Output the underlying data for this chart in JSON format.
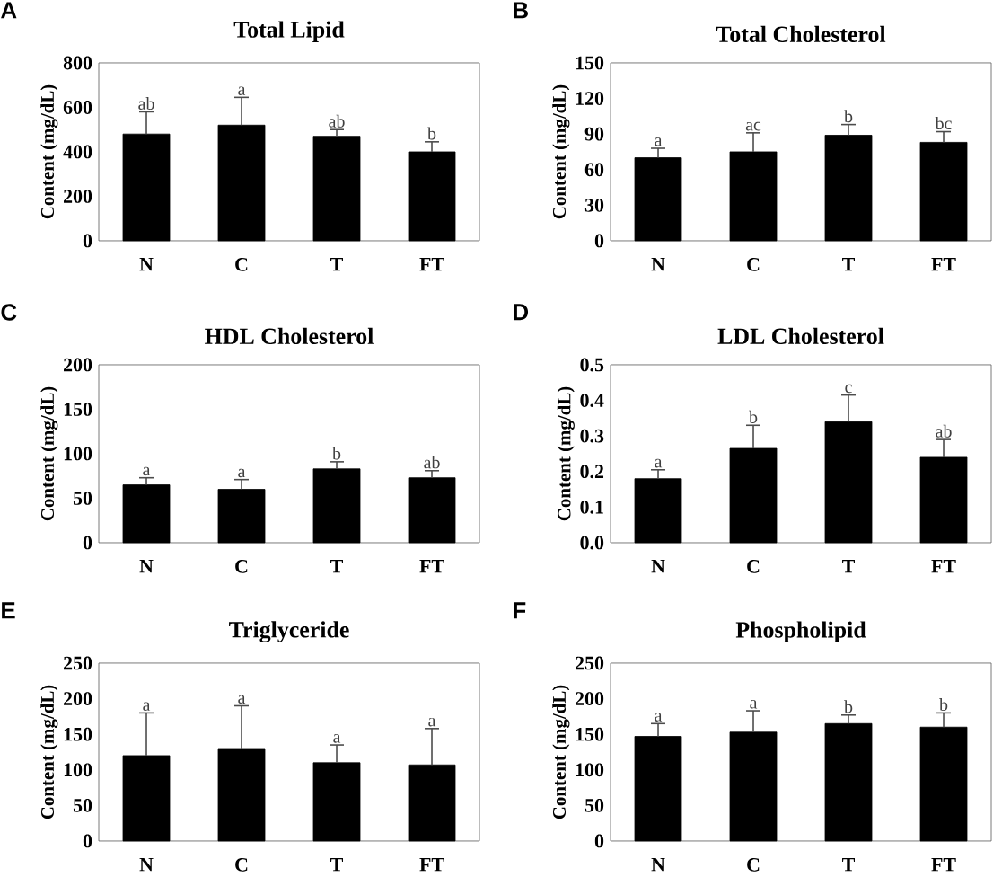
{
  "chart_data": [
    {
      "type": "bar",
      "title": "Total Lipid",
      "ylabel": "Content (mg/dL)",
      "categories": [
        "N",
        "C",
        "T",
        "FT"
      ],
      "values": [
        480,
        520,
        470,
        400
      ],
      "color": "#000000",
      "errors": [
        [
          480,
          580
        ],
        [
          520,
          645
        ],
        [
          470,
          500
        ],
        [
          400,
          445
        ]
      ],
      "ylim": [
        0,
        800
      ],
      "yticks": [
        0,
        200,
        400,
        600,
        800
      ],
      "annotations": [
        "A",
        {
          "text": "ab",
          "x": "N",
          "y": 580
        },
        {
          "text": "a",
          "x": "C",
          "y": 645
        },
        {
          "text": "ab",
          "x": "T",
          "y": 500
        },
        {
          "text": "b",
          "x": "FT",
          "y": 445
        }
      ]
    },
    {
      "type": "bar",
      "title": "Total Cholesterol",
      "ylabel": "Content (mg/dL)",
      "categories": [
        "N",
        "C",
        "T",
        "FT"
      ],
      "values": [
        70,
        75,
        89,
        83
      ],
      "color": "#000000",
      "errors": [
        [
          70,
          78
        ],
        [
          75,
          91
        ],
        [
          89,
          98
        ],
        [
          83,
          92
        ]
      ],
      "ylim": [
        0,
        150
      ],
      "yticks": [
        0,
        30,
        60,
        90,
        120,
        150
      ],
      "annotations": [
        "B",
        {
          "text": "a",
          "x": "N",
          "y": 78
        },
        {
          "text": "ac",
          "x": "C",
          "y": 91
        },
        {
          "text": "b",
          "x": "T",
          "y": 98
        },
        {
          "text": "bc",
          "x": "FT",
          "y": 92
        }
      ]
    },
    {
      "type": "bar",
      "title": "HDL Cholesterol",
      "ylabel": "Content (mg/dL)",
      "categories": [
        "N",
        "C",
        "T",
        "FT"
      ],
      "values": [
        65,
        60,
        83,
        73
      ],
      "color": "#000000",
      "errors": [
        [
          65,
          73
        ],
        [
          60,
          71
        ],
        [
          83,
          91
        ],
        [
          73,
          81
        ]
      ],
      "ylim": [
        0,
        200
      ],
      "yticks": [
        0,
        50,
        100,
        150,
        200
      ],
      "annotations": [
        "C",
        {
          "text": "a",
          "x": "N",
          "y": 73
        },
        {
          "text": "a",
          "x": "C",
          "y": 71
        },
        {
          "text": "b",
          "x": "T",
          "y": 91
        },
        {
          "text": "ab",
          "x": "FT",
          "y": 81
        }
      ]
    },
    {
      "type": "bar",
      "title": "LDL Cholesterol",
      "ylabel": "Content (mg/dL)",
      "categories": [
        "N",
        "C",
        "T",
        "FT"
      ],
      "values": [
        0.18,
        0.265,
        0.34,
        0.24
      ],
      "color": "#000000",
      "errors": [
        [
          0.18,
          0.205
        ],
        [
          0.265,
          0.33
        ],
        [
          0.34,
          0.415
        ],
        [
          0.24,
          0.29
        ]
      ],
      "ylim": [
        0,
        0.5
      ],
      "yticks": [
        {
          "value": 0,
          "label": "0.0"
        },
        0.1,
        0.2,
        0.3,
        0.4,
        0.5
      ],
      "annotations": [
        "D",
        {
          "text": "a",
          "x": "N",
          "y": 0.205
        },
        {
          "text": "b",
          "x": "C",
          "y": 0.33
        },
        {
          "text": "c",
          "x": "T",
          "y": 0.415
        },
        {
          "text": "ab",
          "x": "FT",
          "y": 0.29
        }
      ]
    },
    {
      "type": "bar",
      "title": "Triglyceride",
      "ylabel": "Content (mg/dL)",
      "categories": [
        "N",
        "C",
        "T",
        "FT"
      ],
      "values": [
        120,
        130,
        110,
        107
      ],
      "color": "#000000",
      "errors": [
        [
          120,
          180
        ],
        [
          130,
          190
        ],
        [
          110,
          135
        ],
        [
          107,
          158
        ]
      ],
      "ylim": [
        0,
        250
      ],
      "yticks": [
        0,
        50,
        100,
        150,
        200,
        250
      ],
      "annotations": [
        "E",
        {
          "text": "a",
          "x": "N",
          "y": 180
        },
        {
          "text": "a",
          "x": "C",
          "y": 190
        },
        {
          "text": "a",
          "x": "T",
          "y": 135
        },
        {
          "text": "a",
          "x": "FT",
          "y": 158
        }
      ]
    },
    {
      "type": "bar",
      "title": "Phospholipid",
      "ylabel": "Content (mg/dL)",
      "categories": [
        "N",
        "C",
        "T",
        "FT"
      ],
      "values": [
        147,
        153,
        165,
        160
      ],
      "color": "#000000",
      "errors": [
        [
          147,
          165
        ],
        [
          153,
          183
        ],
        [
          165,
          177
        ],
        [
          160,
          180
        ]
      ],
      "ylim": [
        0,
        250
      ],
      "yticks": [
        0,
        50,
        100,
        150,
        200,
        250
      ],
      "annotations": [
        "F",
        {
          "text": "a",
          "x": "N",
          "y": 165
        },
        {
          "text": "a",
          "x": "C",
          "y": 183
        },
        {
          "text": "b",
          "x": "T",
          "y": 177
        },
        {
          "text": "b",
          "x": "FT",
          "y": 180
        }
      ]
    }
  ]
}
